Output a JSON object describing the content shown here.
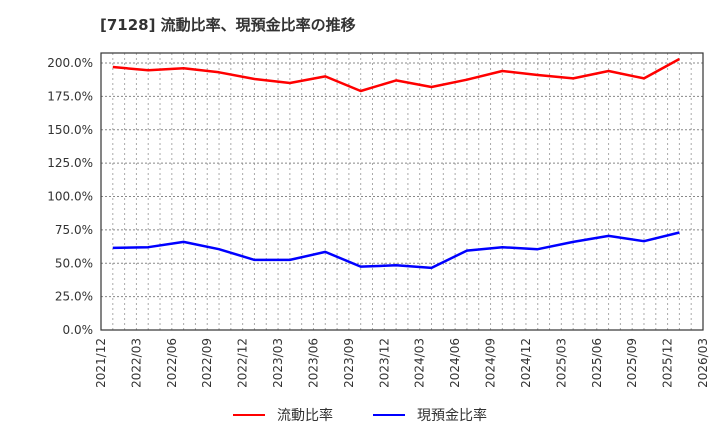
{
  "title": "[7128]  流動比率、現預金比率の推移",
  "colors": {
    "current_ratio": "#ff0000",
    "cash_ratio": "#0000ff",
    "grid": "#999999",
    "axis": "#333333"
  },
  "legend": [
    {
      "label": "流動比率",
      "color": "#ff0000"
    },
    {
      "label": "現預金比率",
      "color": "#0000ff"
    }
  ],
  "chart_data": {
    "type": "line",
    "title": "[7128]  流動比率、現預金比率の推移",
    "xlabel": "",
    "ylabel": "",
    "ylim": [
      0,
      200
    ],
    "y_ticks": [
      "0.0%",
      "25.0%",
      "50.0%",
      "75.0%",
      "100.0%",
      "125.0%",
      "150.0%",
      "175.0%",
      "200.0%"
    ],
    "x_tick_labels": [
      "2021/12",
      "2022/03",
      "2022/06",
      "2022/09",
      "2022/12",
      "2023/03",
      "2023/06",
      "2023/09",
      "2023/12",
      "2024/03",
      "2024/06",
      "2024/09",
      "2024/12",
      "2025/03",
      "2025/06",
      "2025/09",
      "2025/12",
      "2026/03"
    ],
    "categories": [
      "2021/12",
      "2022/03",
      "2022/06",
      "2022/09",
      "2022/12",
      "2023/03",
      "2023/06",
      "2023/09",
      "2023/12",
      "2024/03",
      "2024/06",
      "2024/09",
      "2024/12",
      "2025/03",
      "2025/06",
      "2025/09",
      "2025/12"
    ],
    "grid": true,
    "legend_position": "bottom",
    "series": [
      {
        "name": "流動比率",
        "color": "#ff0000",
        "values": [
          197.0,
          194.5,
          196.0,
          193.0,
          188.0,
          185.0,
          190.0,
          179.0,
          187.0,
          182.0,
          187.5,
          194.0,
          191.0,
          188.5,
          194.0,
          188.5,
          203.0
        ]
      },
      {
        "name": "現預金比率",
        "color": "#0000ff",
        "values": [
          61.5,
          62.0,
          66.0,
          60.5,
          52.5,
          52.5,
          58.5,
          47.5,
          48.5,
          46.5,
          59.5,
          62.0,
          60.5,
          66.0,
          70.5,
          66.5,
          73.0
        ]
      }
    ]
  }
}
